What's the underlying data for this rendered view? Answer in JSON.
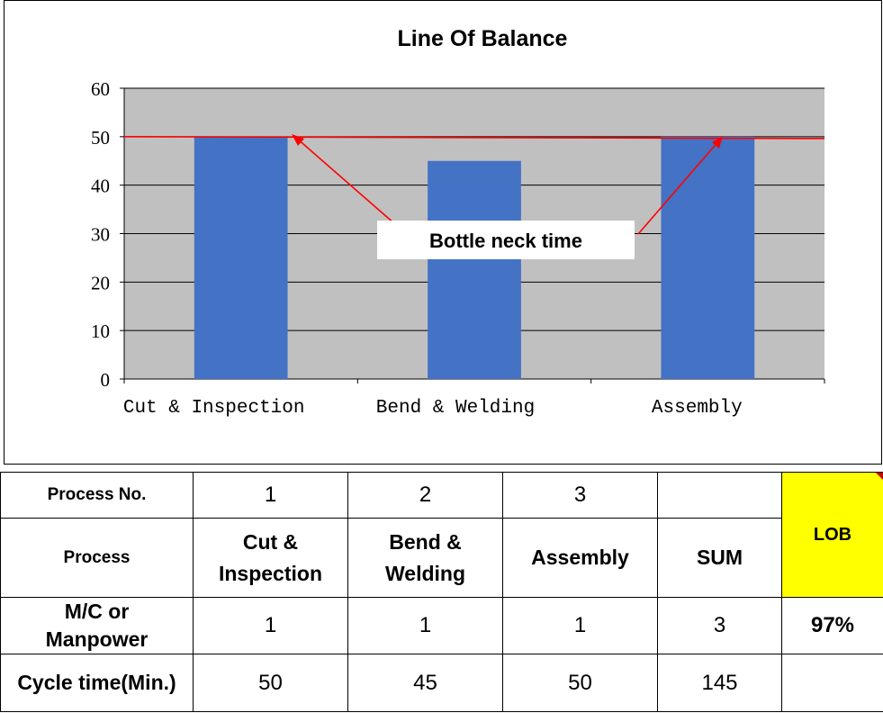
{
  "chart_data": {
    "type": "bar",
    "title": "Line Of Balance",
    "categories": [
      "Cut & Inspection",
      "Bend & Welding",
      "Assembly"
    ],
    "values": [
      50,
      45,
      50
    ],
    "ylim": [
      0,
      60
    ],
    "yticks": [
      0,
      10,
      20,
      30,
      40,
      50,
      60
    ],
    "grid": true,
    "bottleneck_line": 50,
    "annotation": "Bottle neck time",
    "colors": {
      "bar": "#4472c4",
      "plot_bg": "#c0c0c0",
      "line": "#ff0000"
    }
  },
  "table": {
    "row_process_no": {
      "label": "Process No.",
      "values": [
        "1",
        "2",
        "3",
        ""
      ]
    },
    "row_process": {
      "label": "Process",
      "values": [
        [
          "Cut &",
          "Inspection"
        ],
        [
          "Bend &",
          "Welding"
        ],
        [
          "Assembly"
        ],
        [
          "SUM"
        ]
      ]
    },
    "row_manpower": {
      "label": [
        "M/C or",
        "Manpower"
      ],
      "values": [
        "1",
        "1",
        "1",
        "3"
      ]
    },
    "row_cycle": {
      "label": "Cycle time(Min.)",
      "values": [
        "50",
        "45",
        "50",
        "145"
      ]
    },
    "lob_label": "LOB",
    "lob_value": "97%"
  }
}
